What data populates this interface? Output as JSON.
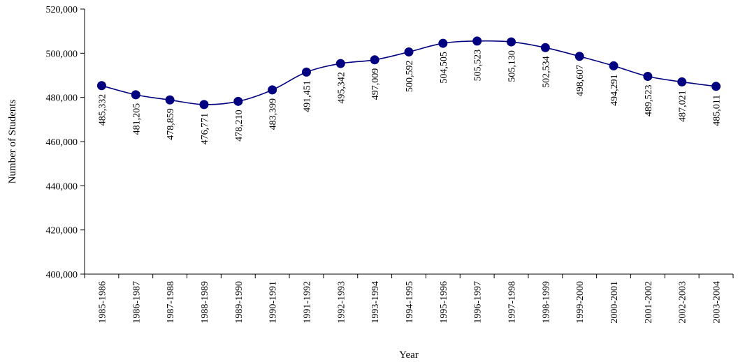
{
  "chart_data": {
    "type": "line",
    "title": "",
    "xlabel": "Year",
    "ylabel": "Number of Students",
    "ylim": [
      400000,
      520000
    ],
    "ytick_step": 20000,
    "grid": false,
    "legend": "none",
    "colors": {
      "series": "#000080",
      "axis": "#000000"
    },
    "categories": [
      "1985-1986",
      "1986-1987",
      "1987-1988",
      "1988-1989",
      "1989-1990",
      "1990-1991",
      "1991-1992",
      "1992-1993",
      "1993-1994",
      "1994-1995",
      "1995-1996",
      "1996-1997",
      "1997-1998",
      "1998-1999",
      "1999-2000",
      "2000-2001",
      "2001-2002",
      "2002-2003",
      "2003-2004"
    ],
    "series": [
      {
        "values": [
          485332,
          481205,
          478859,
          476771,
          478210,
          483399,
          491451,
          495342,
          497009,
          500592,
          504505,
          505523,
          505130,
          502534,
          498607,
          494291,
          489523,
          487021,
          485011
        ],
        "data_labels": [
          "485,332",
          "481,205",
          "478,859",
          "476,771",
          "478,210",
          "483,399",
          "491,451",
          "495,342",
          "497,009",
          "500,592",
          "504,505",
          "505,523",
          "505,130",
          "502,534",
          "498,607",
          "494,291",
          "489,523",
          "487,021",
          "485,011"
        ]
      }
    ],
    "y_tick_labels": [
      "400,000",
      "420,000",
      "440,000",
      "460,000",
      "480,000",
      "500,000",
      "520,000"
    ]
  }
}
